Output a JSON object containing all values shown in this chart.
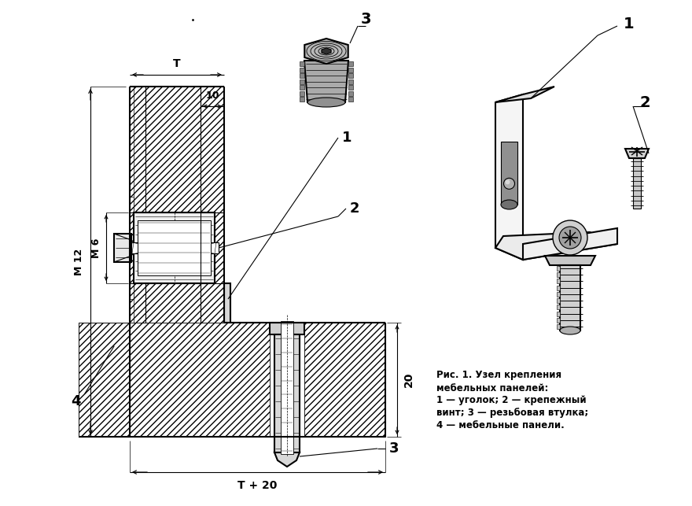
{
  "bg_color": "#ffffff",
  "fig_width": 8.8,
  "fig_height": 6.43,
  "caption_title": "Рис. 1. Узел крепления",
  "caption_line1": "мебельных панелей:",
  "caption_line2": "1 — уголок; 2 — крепежный",
  "caption_line3": "винт; 3 — резьбовая втулка;",
  "caption_line4": "4 — мебельные панели.",
  "dim_T": "T",
  "dim_10": "10",
  "dim_M12": "M 12",
  "dim_M6": "M 6",
  "dim_20": "20",
  "dim_T20": "T + 20",
  "label_1": "1",
  "label_2": "2",
  "label_3": "3",
  "label_4": "4",
  "hatch_color": "#000000",
  "line_color": "#000000"
}
